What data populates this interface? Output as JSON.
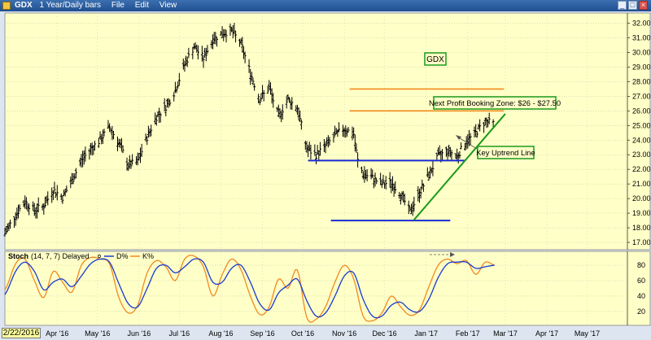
{
  "window": {
    "ticker": "GDX",
    "period": "1 Year/Daily bars",
    "menus": [
      "File",
      "Edit",
      "View"
    ]
  },
  "colors": {
    "background": "#ffffc8",
    "bars": "#000000",
    "grid": "#c8c8a8",
    "uptrend": "#1a9a1a",
    "support": "#1a2bd0",
    "resistance": "#f08a1e",
    "d_line": "#1a3ad0",
    "k_line": "#f08a1e",
    "label_border": "#1a9a1a"
  },
  "date_box": "2/22/2016",
  "annotations": {
    "ticker_box": "GDX",
    "profit_zone": "Next Profit Booking Zone: $26 - $27.50",
    "uptrend": "Key Uptrend Line"
  },
  "stoch_legend": {
    "name": "Stoch",
    "params": "(14, 7, 7) Delayed",
    "d_label": "D%",
    "k_label": "K%"
  },
  "chart_data": {
    "type": "line",
    "price_panel": {
      "y_ticks": [
        "17.00",
        "18.00",
        "19.00",
        "20.00",
        "21.00",
        "22.00",
        "23.00",
        "24.00",
        "25.00",
        "26.00",
        "27.00",
        "28.00",
        "29.00",
        "30.00",
        "31.00",
        "32.00"
      ],
      "ylim": [
        16.5,
        32.7
      ],
      "x_ticks": [
        "Apr '16",
        "May '16",
        "Jun '16",
        "Jul '16",
        "Aug '16",
        "Sep '16",
        "Oct '16",
        "Nov '16",
        "Dec '16",
        "Jan '17",
        "Feb '17",
        "Mar '17",
        "Apr '17",
        "May '17"
      ],
      "x_tick_dates": [
        "2016-04-01",
        "2016-05-01",
        "2016-06-01",
        "2016-07-01",
        "2016-08-01",
        "2016-09-01",
        "2016-10-01",
        "2016-11-01",
        "2016-12-01",
        "2017-01-01",
        "2017-02-01",
        "2017-03-01",
        "2017-04-01",
        "2017-05-01"
      ],
      "xlim": [
        "2016-02-22",
        "2017-05-31"
      ],
      "series": [
        {
          "style": "daily-bars",
          "points": [
            [
              "2016-02-22",
              17.6
            ],
            [
              "2016-03-01",
              18.9
            ],
            [
              "2016-03-08",
              19.8
            ],
            [
              "2016-03-15",
              19.2
            ],
            [
              "2016-03-22",
              19.5
            ],
            [
              "2016-03-29",
              20.6
            ],
            [
              "2016-04-05",
              20.1
            ],
            [
              "2016-04-12",
              21.2
            ],
            [
              "2016-04-19",
              22.6
            ],
            [
              "2016-04-26",
              23.4
            ],
            [
              "2016-05-03",
              24.0
            ],
            [
              "2016-05-10",
              24.9
            ],
            [
              "2016-05-17",
              23.8
            ],
            [
              "2016-05-24",
              22.3
            ],
            [
              "2016-05-31",
              22.5
            ],
            [
              "2016-06-07",
              24.2
            ],
            [
              "2016-06-14",
              25.6
            ],
            [
              "2016-06-21",
              26.3
            ],
            [
              "2016-06-28",
              27.4
            ],
            [
              "2016-07-05",
              29.2
            ],
            [
              "2016-07-12",
              30.4
            ],
            [
              "2016-07-19",
              29.6
            ],
            [
              "2016-07-26",
              30.9
            ],
            [
              "2016-08-02",
              31.3
            ],
            [
              "2016-08-09",
              31.5
            ],
            [
              "2016-08-16",
              30.6
            ],
            [
              "2016-08-23",
              28.6
            ],
            [
              "2016-08-30",
              26.8
            ],
            [
              "2016-09-06",
              27.6
            ],
            [
              "2016-09-13",
              25.6
            ],
            [
              "2016-09-20",
              26.8
            ],
            [
              "2016-09-27",
              26.2
            ],
            [
              "2016-10-04",
              23.4
            ],
            [
              "2016-10-11",
              23.0
            ],
            [
              "2016-10-18",
              23.6
            ],
            [
              "2016-10-25",
              24.3
            ],
            [
              "2016-11-01",
              24.8
            ],
            [
              "2016-11-08",
              24.4
            ],
            [
              "2016-11-11",
              22.6
            ],
            [
              "2016-11-15",
              21.7
            ],
            [
              "2016-11-22",
              21.4
            ],
            [
              "2016-11-29",
              21.0
            ],
            [
              "2016-12-06",
              21.1
            ],
            [
              "2016-12-13",
              20.3
            ],
            [
              "2016-12-20",
              19.1
            ],
            [
              "2016-12-27",
              20.4
            ],
            [
              "2017-01-03",
              21.6
            ],
            [
              "2017-01-10",
              22.9
            ],
            [
              "2017-01-17",
              23.3
            ],
            [
              "2017-01-24",
              22.9
            ],
            [
              "2017-01-31",
              23.9
            ],
            [
              "2017-02-07",
              24.5
            ],
            [
              "2017-02-14",
              25.3
            ],
            [
              "2017-02-21",
              25.1
            ]
          ]
        }
      ],
      "reference_lines": [
        {
          "kind": "support",
          "y": 22.6,
          "from": "2016-10-05",
          "to": "2017-01-30"
        },
        {
          "kind": "support",
          "y": 18.5,
          "from": "2016-10-22",
          "to": "2017-01-19"
        },
        {
          "kind": "resistance",
          "y": 26.0,
          "from": "2016-11-05",
          "to": "2017-02-28"
        },
        {
          "kind": "resistance",
          "y": 27.5,
          "from": "2016-11-05",
          "to": "2017-02-28"
        },
        {
          "kind": "uptrend",
          "from": [
            "2016-12-23",
            18.55
          ],
          "to": [
            "2017-03-01",
            25.8
          ]
        }
      ]
    },
    "stoch_panel": {
      "y_ticks": [
        "20",
        "40",
        "60",
        "80"
      ],
      "ylim": [
        2,
        98
      ],
      "series": [
        {
          "name": "K%",
          "points": [
            [
              "2016-02-22",
              48
            ],
            [
              "2016-03-01",
              82
            ],
            [
              "2016-03-08",
              88
            ],
            [
              "2016-03-15",
              60
            ],
            [
              "2016-03-22",
              38
            ],
            [
              "2016-03-29",
              72
            ],
            [
              "2016-04-05",
              58
            ],
            [
              "2016-04-12",
              45
            ],
            [
              "2016-04-19",
              80
            ],
            [
              "2016-04-26",
              90
            ],
            [
              "2016-05-03",
              88
            ],
            [
              "2016-05-10",
              82
            ],
            [
              "2016-05-17",
              38
            ],
            [
              "2016-05-24",
              18
            ],
            [
              "2016-05-31",
              28
            ],
            [
              "2016-06-07",
              70
            ],
            [
              "2016-06-14",
              86
            ],
            [
              "2016-06-21",
              78
            ],
            [
              "2016-06-28",
              60
            ],
            [
              "2016-07-05",
              88
            ],
            [
              "2016-07-12",
              92
            ],
            [
              "2016-07-19",
              78
            ],
            [
              "2016-07-26",
              40
            ],
            [
              "2016-08-02",
              68
            ],
            [
              "2016-08-09",
              88
            ],
            [
              "2016-08-16",
              74
            ],
            [
              "2016-08-23",
              40
            ],
            [
              "2016-08-30",
              16
            ],
            [
              "2016-09-06",
              26
            ],
            [
              "2016-09-13",
              62
            ],
            [
              "2016-09-20",
              50
            ],
            [
              "2016-09-27",
              74
            ],
            [
              "2016-10-04",
              12
            ],
            [
              "2016-10-11",
              10
            ],
            [
              "2016-10-18",
              26
            ],
            [
              "2016-10-25",
              58
            ],
            [
              "2016-11-01",
              80
            ],
            [
              "2016-11-08",
              62
            ],
            [
              "2016-11-15",
              14
            ],
            [
              "2016-11-22",
              8
            ],
            [
              "2016-11-29",
              18
            ],
            [
              "2016-12-06",
              40
            ],
            [
              "2016-12-13",
              26
            ],
            [
              "2016-12-20",
              15
            ],
            [
              "2016-12-27",
              22
            ],
            [
              "2017-01-03",
              52
            ],
            [
              "2017-01-10",
              80
            ],
            [
              "2017-01-17",
              88
            ],
            [
              "2017-01-24",
              82
            ],
            [
              "2017-01-31",
              86
            ],
            [
              "2017-02-07",
              68
            ],
            [
              "2017-02-14",
              84
            ],
            [
              "2017-02-21",
              80
            ]
          ]
        },
        {
          "name": "D%",
          "points": [
            [
              "2016-02-22",
              42
            ],
            [
              "2016-03-01",
              72
            ],
            [
              "2016-03-08",
              84
            ],
            [
              "2016-03-15",
              72
            ],
            [
              "2016-03-22",
              48
            ],
            [
              "2016-03-29",
              58
            ],
            [
              "2016-04-05",
              62
            ],
            [
              "2016-04-12",
              52
            ],
            [
              "2016-04-19",
              66
            ],
            [
              "2016-04-26",
              82
            ],
            [
              "2016-05-03",
              88
            ],
            [
              "2016-05-10",
              84
            ],
            [
              "2016-05-17",
              56
            ],
            [
              "2016-05-24",
              30
            ],
            [
              "2016-05-31",
              26
            ],
            [
              "2016-06-07",
              50
            ],
            [
              "2016-06-14",
              76
            ],
            [
              "2016-06-21",
              80
            ],
            [
              "2016-06-28",
              70
            ],
            [
              "2016-07-05",
              78
            ],
            [
              "2016-07-12",
              88
            ],
            [
              "2016-07-19",
              84
            ],
            [
              "2016-07-26",
              58
            ],
            [
              "2016-08-02",
              58
            ],
            [
              "2016-08-09",
              76
            ],
            [
              "2016-08-16",
              80
            ],
            [
              "2016-08-23",
              58
            ],
            [
              "2016-08-30",
              30
            ],
            [
              "2016-09-06",
              22
            ],
            [
              "2016-09-13",
              44
            ],
            [
              "2016-09-20",
              54
            ],
            [
              "2016-09-27",
              62
            ],
            [
              "2016-10-04",
              34
            ],
            [
              "2016-10-11",
              14
            ],
            [
              "2016-10-18",
              18
            ],
            [
              "2016-10-25",
              40
            ],
            [
              "2016-11-01",
              66
            ],
            [
              "2016-11-08",
              70
            ],
            [
              "2016-11-15",
              36
            ],
            [
              "2016-11-22",
              14
            ],
            [
              "2016-11-29",
              14
            ],
            [
              "2016-12-06",
              28
            ],
            [
              "2016-12-13",
              32
            ],
            [
              "2016-12-20",
              22
            ],
            [
              "2016-12-27",
              20
            ],
            [
              "2017-01-03",
              36
            ],
            [
              "2017-01-10",
              64
            ],
            [
              "2017-01-17",
              82
            ],
            [
              "2017-01-24",
              84
            ],
            [
              "2017-01-31",
              84
            ],
            [
              "2017-02-07",
              76
            ],
            [
              "2017-02-14",
              78
            ],
            [
              "2017-02-21",
              80
            ]
          ]
        }
      ]
    }
  }
}
